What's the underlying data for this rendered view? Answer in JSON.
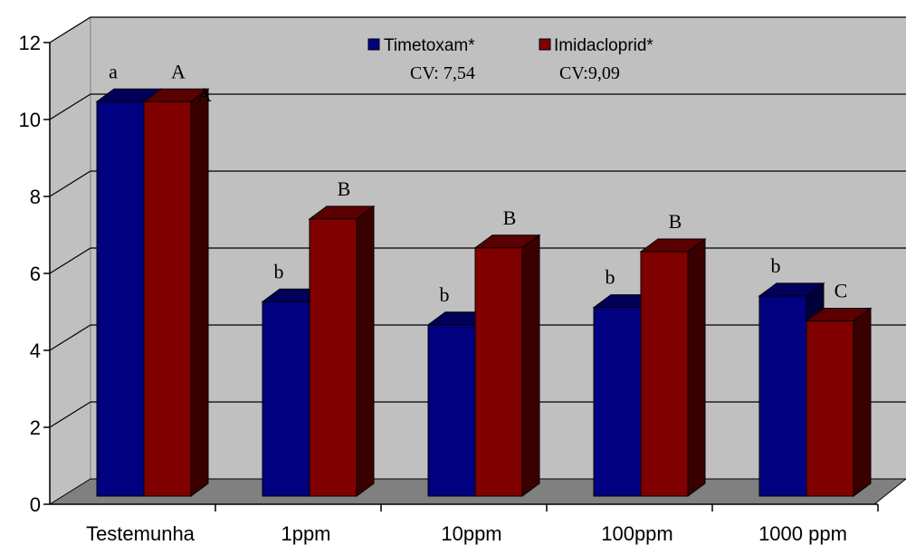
{
  "chart_data": {
    "type": "bar",
    "categories": [
      "Testemunha",
      "1ppm",
      "10ppm",
      "100ppm",
      "1000 ppm"
    ],
    "series": [
      {
        "name": "Timetoxam*",
        "values": [
          10.7,
          5.5,
          4.9,
          5.35,
          5.65
        ],
        "letters": [
          "a",
          "b",
          "b",
          "b",
          "b"
        ],
        "color": "#000080"
      },
      {
        "name": "Imidacloprid*",
        "values": [
          10.7,
          7.65,
          6.9,
          6.8,
          5.0
        ],
        "letters": [
          "A",
          "B",
          "B",
          "B",
          "C"
        ],
        "color": "#800000"
      }
    ],
    "cv": [
      "CV: 7,54",
      "CV:9,09"
    ],
    "extra_annotation": "A",
    "ylim": [
      0,
      12
    ],
    "yticks": [
      0,
      2,
      4,
      6,
      8,
      10,
      12
    ],
    "grid": true,
    "legend_position": "top-center",
    "colors": {
      "wall": "#c0c0c0",
      "floor": "#808080",
      "grid": "#000000"
    }
  }
}
